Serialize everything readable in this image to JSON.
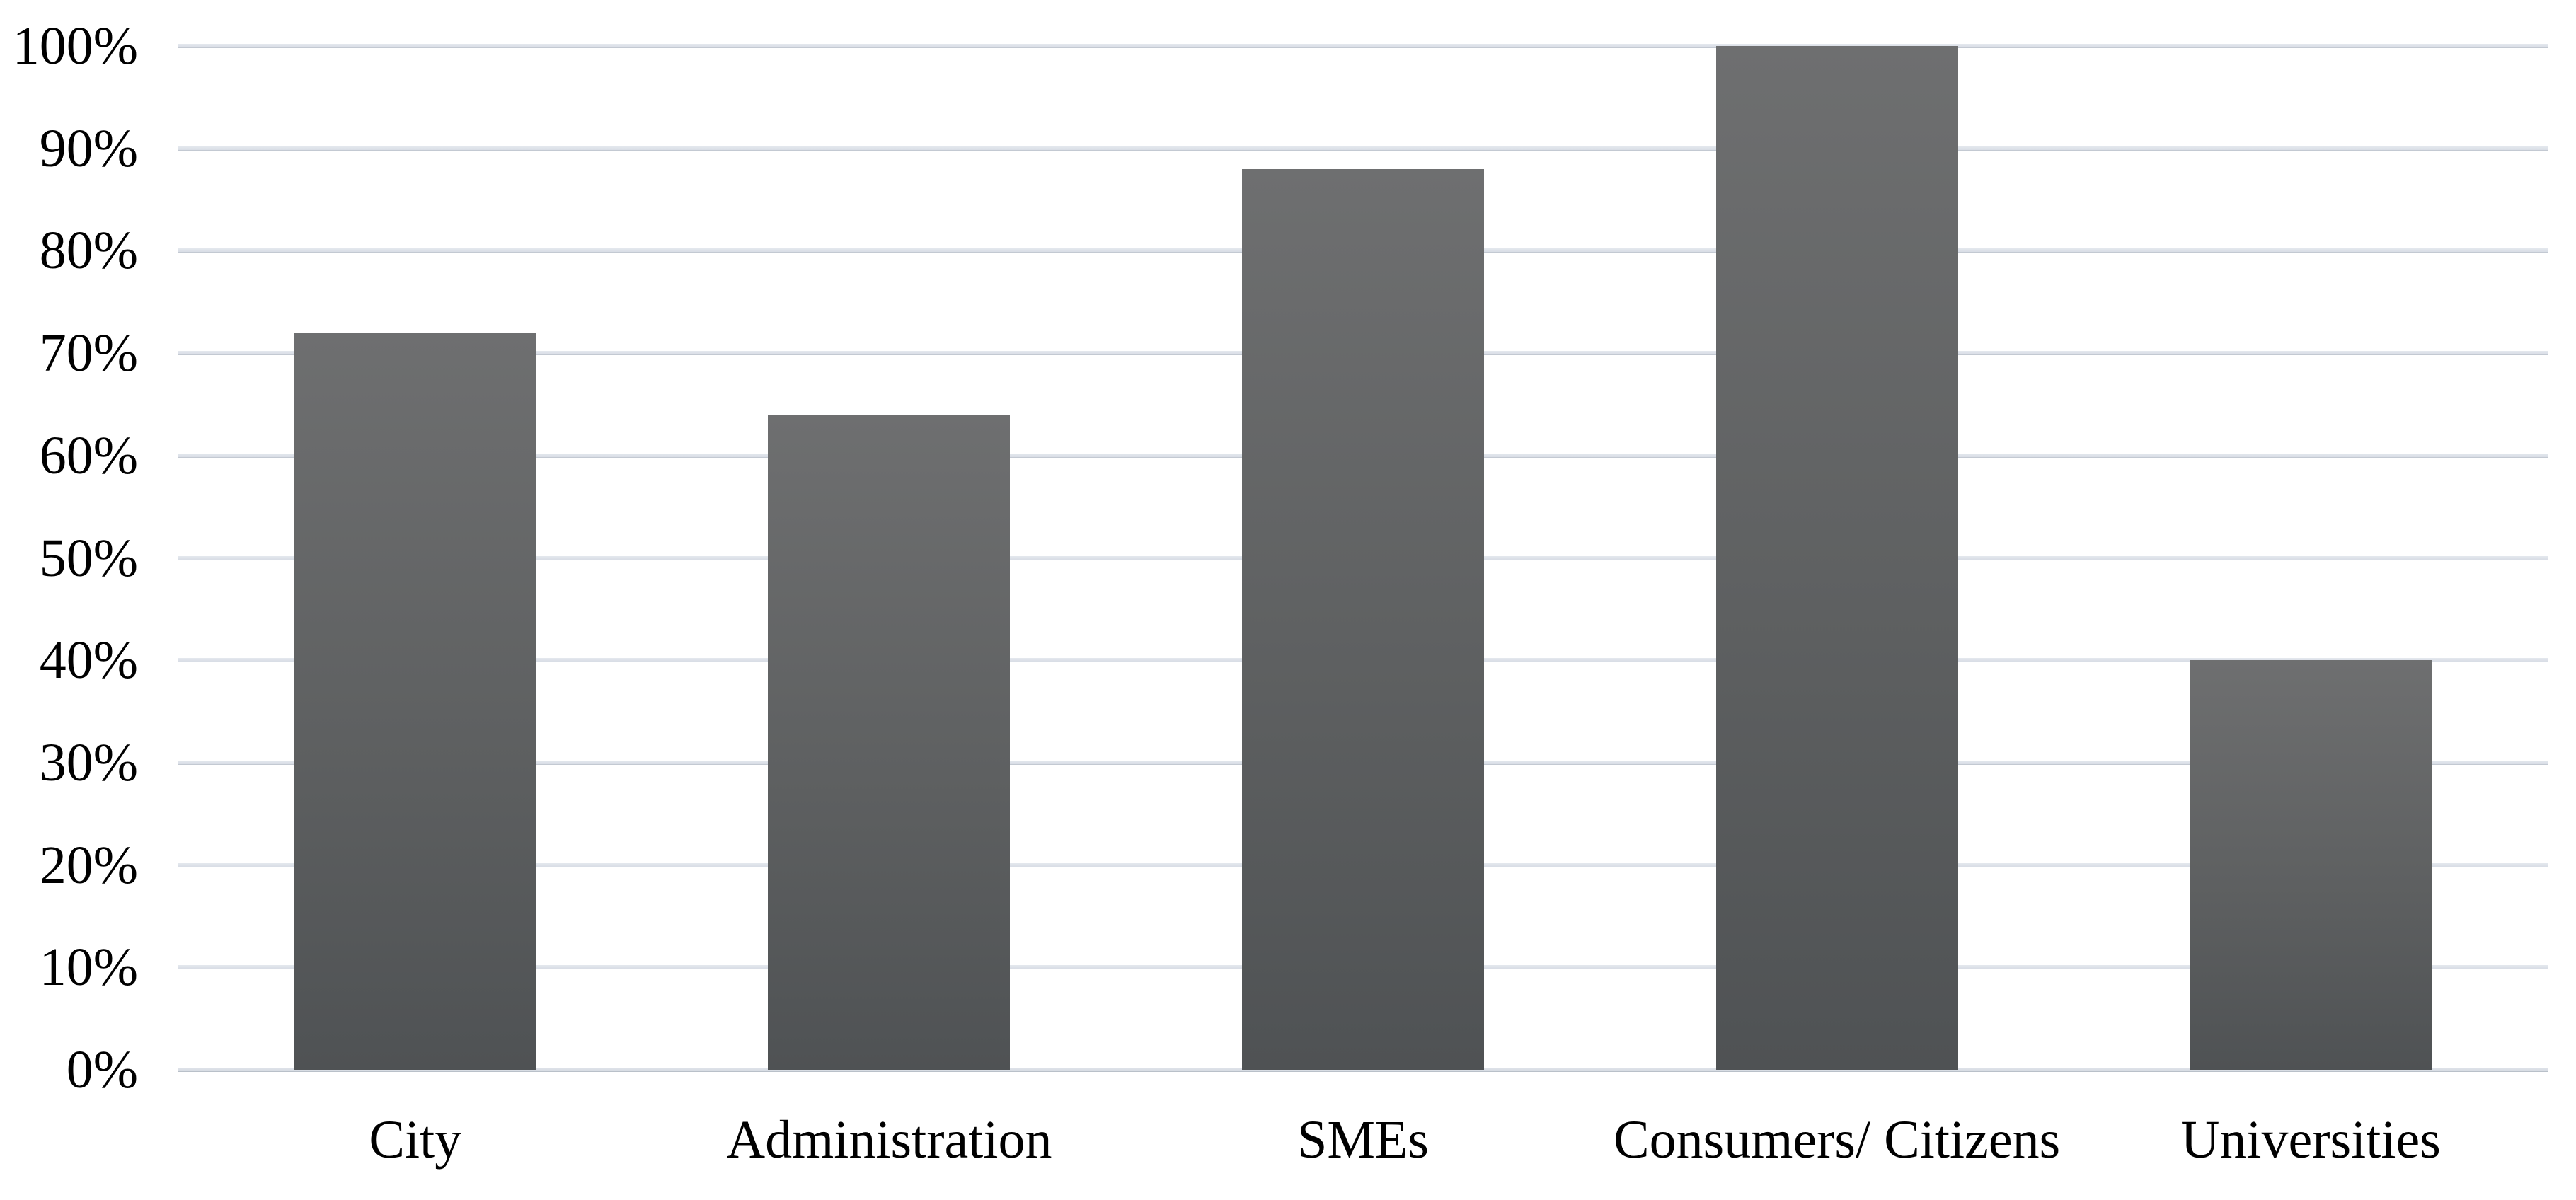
{
  "chart_data": {
    "type": "bar",
    "title": "",
    "subtitle": "",
    "xlabel": "",
    "ylabel": "",
    "categories": [
      "City",
      "Administration",
      "SMEs",
      "Consumers/ Citizens",
      "Universities"
    ],
    "values": [
      72,
      64,
      88,
      100,
      40
    ],
    "value_format": "percent",
    "ylim": [
      0,
      100
    ],
    "ytick_step": 10,
    "ytick_labels": [
      "0%",
      "10%",
      "20%",
      "30%",
      "40%",
      "50%",
      "60%",
      "70%",
      "80%",
      "90%",
      "100%"
    ],
    "grid": true,
    "legend": false,
    "data_labels": false,
    "colors": {
      "bar_top": "#6e6f70",
      "bar_bottom": "#4f5254",
      "gridline": "#d8dde5",
      "gridline_edge": "#c3c9d2",
      "axis_baseline_edge": "#b9c0c9",
      "label_text": "#000000",
      "background": "#ffffff"
    }
  }
}
